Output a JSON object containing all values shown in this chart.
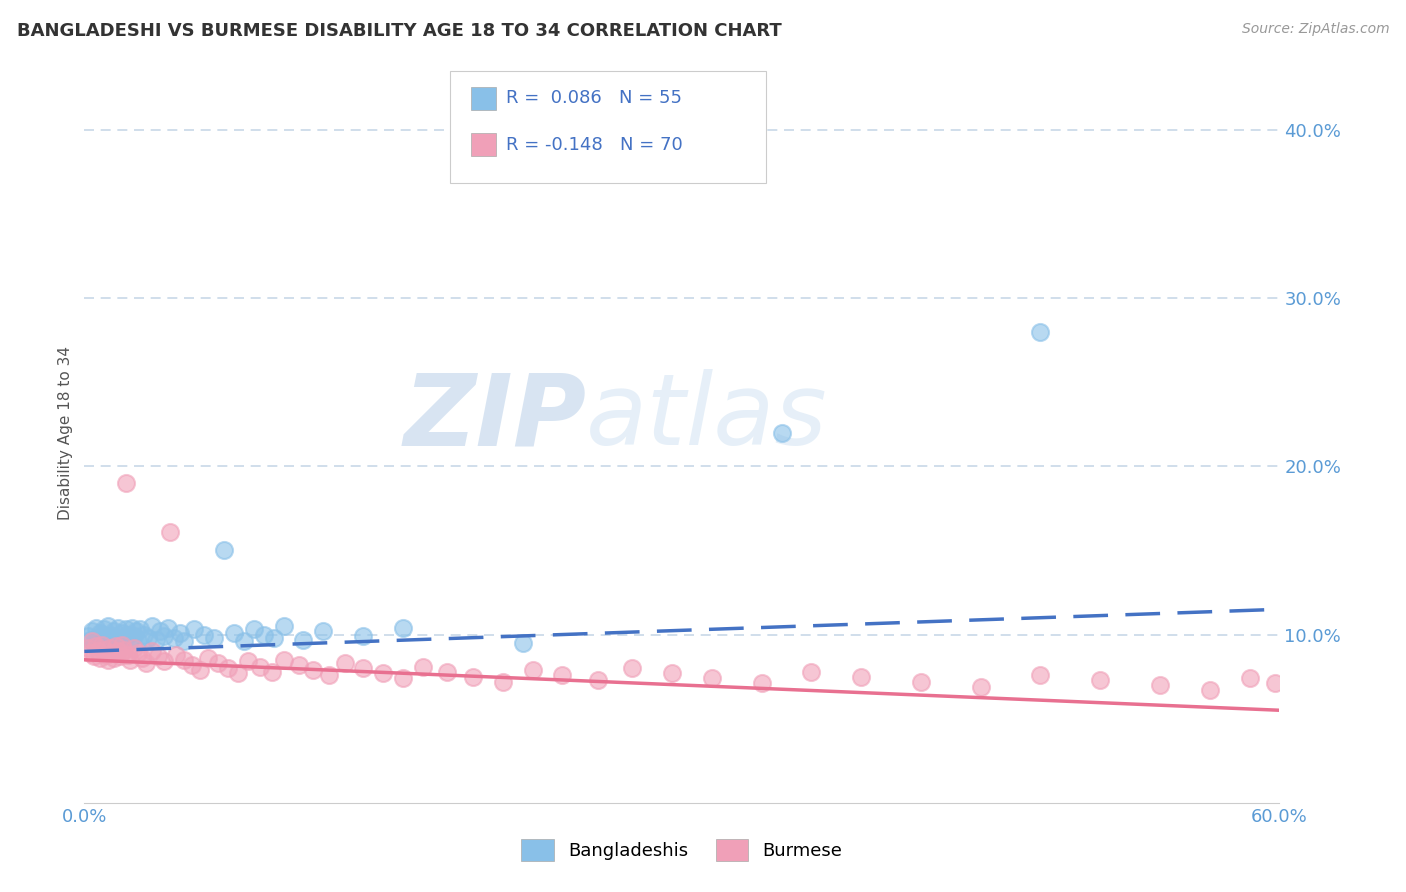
{
  "title": "BANGLADESHI VS BURMESE DISABILITY AGE 18 TO 34 CORRELATION CHART",
  "source": "Source: ZipAtlas.com",
  "ylabel": "Disability Age 18 to 34",
  "xlim": [
    0.0,
    0.6
  ],
  "ylim": [
    0.0,
    0.44
  ],
  "yticks": [
    0.1,
    0.2,
    0.3,
    0.4
  ],
  "ytick_labels": [
    "10.0%",
    "20.0%",
    "30.0%",
    "40.0%"
  ],
  "blue_color": "#89c0e8",
  "pink_color": "#f0a0b8",
  "blue_line_color": "#4472c4",
  "pink_line_color": "#e87090",
  "watermark_zip": "ZIP",
  "watermark_atlas": "atlas",
  "background_color": "#ffffff",
  "grid_color": "#c8d8e8",
  "blue_r": 0.086,
  "blue_n": 55,
  "pink_r": -0.148,
  "pink_n": 70,
  "blue_line_x0": 0.0,
  "blue_line_x1": 0.6,
  "blue_line_y0": 0.09,
  "blue_line_y1": 0.115,
  "pink_line_x0": 0.0,
  "pink_line_x1": 0.6,
  "pink_line_y0": 0.085,
  "pink_line_y1": 0.055
}
